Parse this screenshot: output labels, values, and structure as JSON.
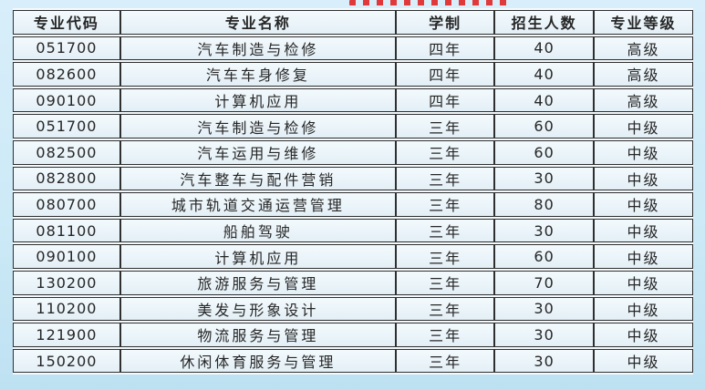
{
  "page": {
    "background_top": "#d8eefa",
    "background_bottom": "#bee1f2",
    "accent_red": "#e0393b",
    "table_border_color": "#2f2f2f",
    "cell_background": "#eef6fb"
  },
  "table": {
    "headers": [
      "专业代码",
      "专业名称",
      "学制",
      "招生人数",
      "专业等级"
    ],
    "rows": [
      {
        "code": "051700",
        "name": "汽车制造与检修",
        "duration": "四年",
        "enrollment": "40",
        "level": "高级"
      },
      {
        "code": "082600",
        "name": "汽车车身修复",
        "duration": "四年",
        "enrollment": "40",
        "level": "高级"
      },
      {
        "code": "090100",
        "name": "计算机应用",
        "duration": "四年",
        "enrollment": "40",
        "level": "高级"
      },
      {
        "code": "051700",
        "name": "汽车制造与检修",
        "duration": "三年",
        "enrollment": "60",
        "level": "中级"
      },
      {
        "code": "082500",
        "name": "汽车运用与维修",
        "duration": "三年",
        "enrollment": "60",
        "level": "中级"
      },
      {
        "code": "082800",
        "name": "汽车整车与配件营销",
        "duration": "三年",
        "enrollment": "30",
        "level": "中级"
      },
      {
        "code": "080700",
        "name": "城市轨道交通运营管理",
        "duration": "三年",
        "enrollment": "80",
        "level": "中级"
      },
      {
        "code": "081100",
        "name": "船舶驾驶",
        "duration": "三年",
        "enrollment": "30",
        "level": "中级"
      },
      {
        "code": "090100",
        "name": "计算机应用",
        "duration": "三年",
        "enrollment": "60",
        "level": "中级"
      },
      {
        "code": "130200",
        "name": "旅游服务与管理",
        "duration": "三年",
        "enrollment": "70",
        "level": "中级"
      },
      {
        "code": "110200",
        "name": "美发与形象设计",
        "duration": "三年",
        "enrollment": "30",
        "level": "中级"
      },
      {
        "code": "121900",
        "name": "物流服务与管理",
        "duration": "三年",
        "enrollment": "30",
        "level": "中级"
      },
      {
        "code": "150200",
        "name": "休闲体育服务与管理",
        "duration": "三年",
        "enrollment": "30",
        "level": "中级"
      }
    ]
  }
}
